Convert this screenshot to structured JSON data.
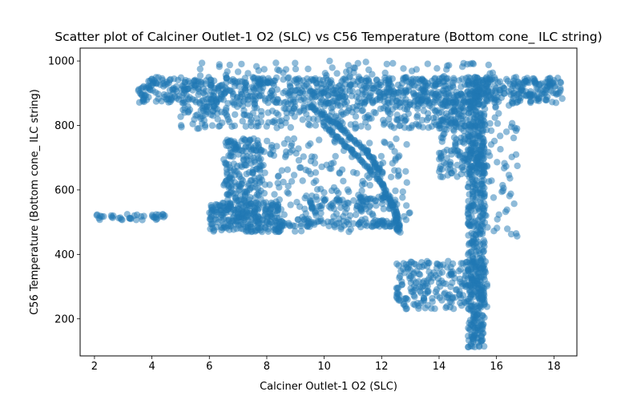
{
  "chart_data": {
    "type": "scatter",
    "title": "Scatter plot of Calciner Outlet-1 O2 (SLC) vs C56 Temperature (Bottom cone_ ILC string)",
    "xlabel": "Calciner Outlet-1 O2 (SLC)",
    "ylabel": "C56 Temperature (Bottom cone_ ILC string)",
    "xlim": [
      1.5,
      18.8
    ],
    "ylim": [
      85,
      1040
    ],
    "xticks": [
      2,
      4,
      6,
      8,
      10,
      12,
      14,
      16,
      18
    ],
    "yticks": [
      200,
      400,
      600,
      800,
      1000
    ],
    "grid": false,
    "legend": "none",
    "series": [
      {
        "color": "#1f77b4",
        "alpha": 0.5,
        "clusters": [
          {
            "desc": "top dense band",
            "x": [
              3.5,
              18.3
            ],
            "y": [
              870,
              950
            ],
            "n": 900
          },
          {
            "desc": "top sparse upper",
            "x": [
              5.5,
              16
            ],
            "y": [
              950,
              1000
            ],
            "n": 60
          },
          {
            "desc": "upper band spread",
            "x": [
              5,
              15
            ],
            "y": [
              790,
              870
            ],
            "n": 300
          },
          {
            "desc": "left low line",
            "x": [
              2,
              4.5
            ],
            "y": [
              505,
              525
            ],
            "n": 40
          },
          {
            "desc": "cluster near 7 bottom",
            "x": [
              6,
              8.5
            ],
            "y": [
              470,
              560
            ],
            "n": 250
          },
          {
            "desc": "cluster near 7 mid",
            "x": [
              6.5,
              7.8
            ],
            "y": [
              560,
              760
            ],
            "n": 180
          },
          {
            "desc": "middle scattered",
            "x": [
              7.5,
              13
            ],
            "y": [
              470,
              760
            ],
            "n": 220
          },
          {
            "desc": "band near 560",
            "x": [
              9.5,
              12.5
            ],
            "y": [
              540,
              580
            ],
            "n": 80
          },
          {
            "desc": "band near 500",
            "x": [
              8.5,
              12.5
            ],
            "y": [
              485,
              510
            ],
            "n": 80
          },
          {
            "desc": "vertical near 15.3",
            "x": [
              15,
              15.6
            ],
            "y": [
              110,
              950
            ],
            "n": 500
          },
          {
            "desc": "cluster near 14.8 mid",
            "x": [
              14,
              15.6
            ],
            "y": [
              640,
              880
            ],
            "n": 180
          },
          {
            "desc": "low cluster",
            "x": [
              12.5,
              15.7
            ],
            "y": [
              230,
              380
            ],
            "n": 250
          },
          {
            "desc": "right side scattered",
            "x": [
              15.5,
              16.8
            ],
            "y": [
              450,
              950
            ],
            "n": 80
          }
        ],
        "curves": [
          {
            "desc": "diagonal down arc",
            "points": [
              [
                10,
                800
              ],
              [
                11,
                720
              ],
              [
                12,
                620
              ],
              [
                12.5,
                530
              ],
              [
                12.6,
                470
              ]
            ]
          },
          {
            "desc": "arc near 11",
            "points": [
              [
                9.5,
                860
              ],
              [
                10.5,
                800
              ],
              [
                11.5,
                720
              ],
              [
                12,
                650
              ]
            ]
          }
        ]
      }
    ]
  }
}
